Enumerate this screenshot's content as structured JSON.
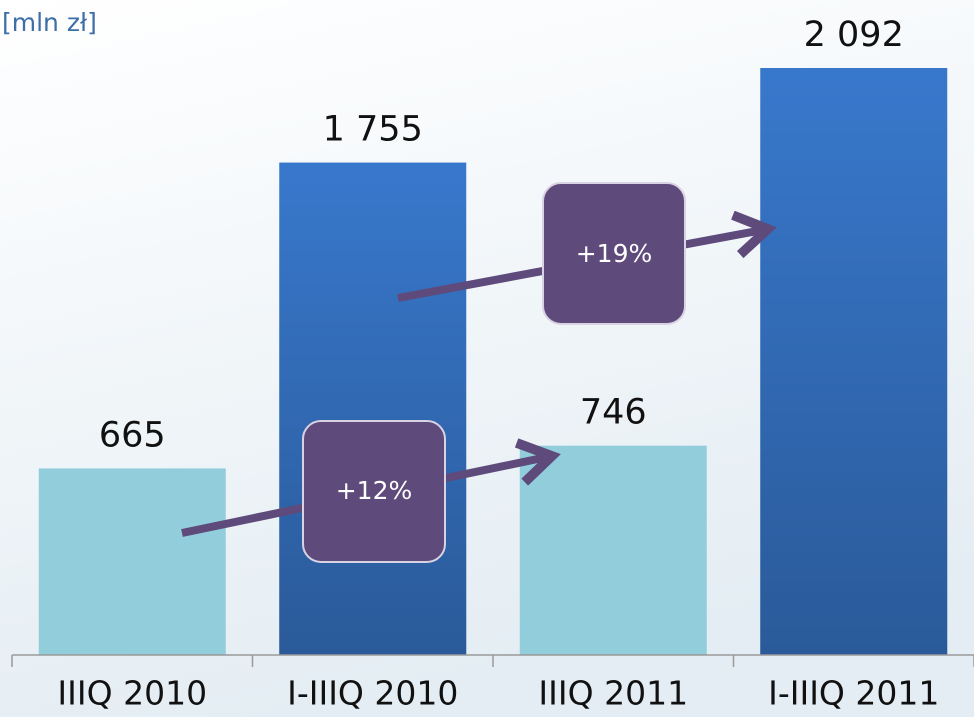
{
  "chart_data": {
    "type": "bar",
    "subtitle": "[mln zł]",
    "categories": [
      "IIIQ 2010",
      "I-IIIQ 2010",
      "IIIQ 2011",
      "I-IIIQ 2011"
    ],
    "values": [
      665,
      1755,
      746,
      2092
    ],
    "value_labels": [
      "665",
      "1 755",
      "746",
      "2 092"
    ],
    "colors": [
      "#92cddc",
      "#3878cc",
      "#92cddc",
      "#3878cc"
    ],
    "annotations": [
      "+12%",
      "+19%"
    ]
  }
}
